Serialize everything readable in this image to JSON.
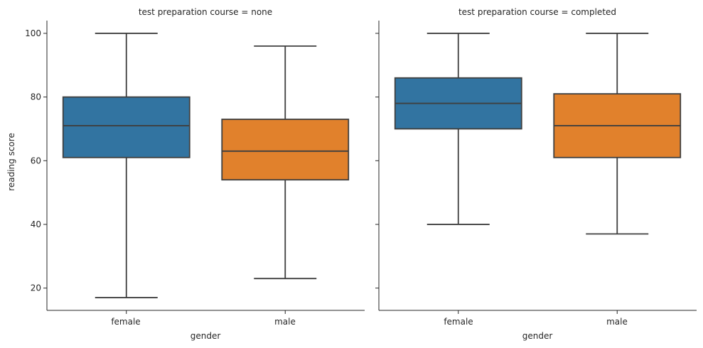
{
  "chart_data": {
    "type": "boxplot",
    "ylabel": "reading score",
    "yticks": [
      20,
      40,
      60,
      80,
      100
    ],
    "ylim": [
      13,
      104
    ],
    "line_color": "#3f3f3f",
    "panels": [
      {
        "title": "test preparation course = none",
        "xlabel": "gender",
        "categories": [
          "female",
          "male"
        ],
        "boxes": [
          {
            "name": "female",
            "color": "#3274a1",
            "min": 17,
            "q1": 61,
            "median": 71,
            "q3": 80,
            "max": 100
          },
          {
            "name": "male",
            "color": "#e1812c",
            "min": 23,
            "q1": 54,
            "median": 63,
            "q3": 73,
            "max": 96
          }
        ]
      },
      {
        "title": "test preparation course = completed",
        "xlabel": "gender",
        "categories": [
          "female",
          "male"
        ],
        "boxes": [
          {
            "name": "female",
            "color": "#3274a1",
            "min": 40,
            "q1": 70,
            "median": 78,
            "q3": 86,
            "max": 100
          },
          {
            "name": "male",
            "color": "#e1812c",
            "min": 37,
            "q1": 61,
            "median": 71,
            "q3": 81,
            "max": 100
          }
        ]
      }
    ]
  }
}
